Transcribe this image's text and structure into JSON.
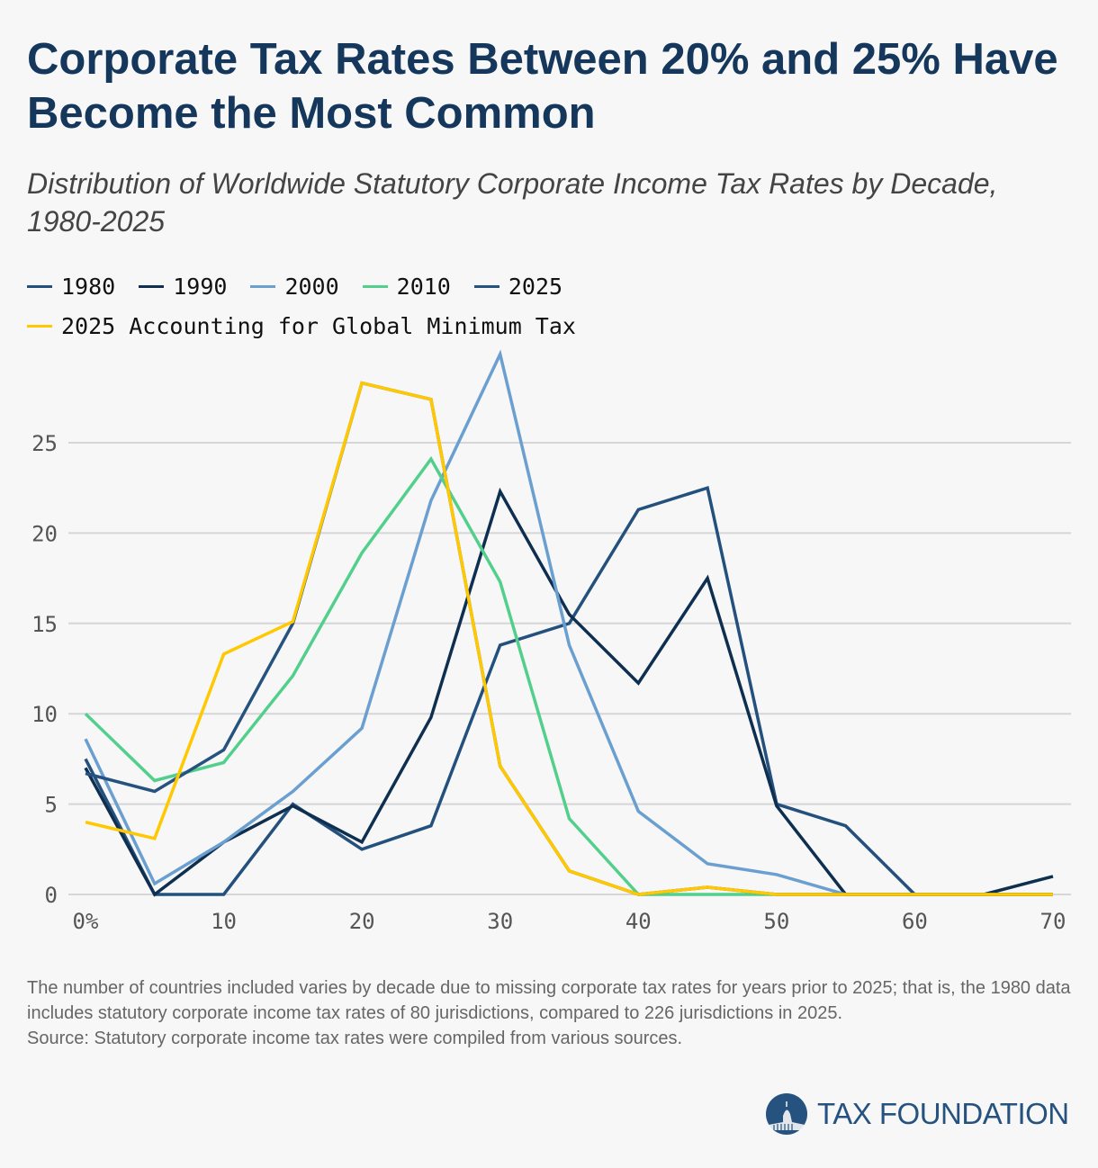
{
  "title": "Corporate Tax Rates Between 20% and 25% Have Become the Most Common",
  "subtitle": "Distribution of Worldwide Statutory Corporate Income Tax Rates by Decade, 1980-2025",
  "notes": {
    "line1": "The number of countries included varies by decade due to missing corporate tax rates for years prior to 2025; that is, the 1980 data includes statutory corporate income tax rates of 80 jurisdictions, compared to 226 jurisdictions in 2025.",
    "source": "Source: Statutory corporate income tax rates were compiled from various sources."
  },
  "logo": {
    "text": "TAX FOUNDATION",
    "color": "#25527f"
  },
  "chart_data": {
    "type": "line",
    "x": [
      0,
      5,
      10,
      15,
      20,
      25,
      30,
      35,
      40,
      45,
      50,
      55,
      60,
      65,
      70
    ],
    "x_tick_values": [
      0,
      10,
      20,
      30,
      40,
      50,
      60,
      70
    ],
    "x_tick_labels": [
      "0%",
      "10",
      "20",
      "30",
      "40",
      "50",
      "60",
      "70"
    ],
    "y_tick_values": [
      0,
      5,
      10,
      15,
      20,
      25
    ],
    "y_tick_labels": [
      "0",
      "5",
      "10",
      "15",
      "20",
      "25"
    ],
    "xlim": [
      0,
      70
    ],
    "ylim": [
      0,
      30
    ],
    "grid": "horizontal",
    "legend_position": "top-left",
    "series": [
      {
        "name": "1980",
        "color": "#24507d",
        "values": [
          7.5,
          0,
          0,
          5,
          2.5,
          3.8,
          13.8,
          15,
          21.3,
          22.5,
          5,
          3.8,
          0,
          0,
          0
        ]
      },
      {
        "name": "1990",
        "color": "#0f2f50",
        "values": [
          7,
          0,
          2.9,
          4.9,
          2.9,
          9.8,
          22.3,
          15.5,
          11.7,
          17.5,
          4.9,
          0,
          0,
          0,
          1
        ]
      },
      {
        "name": "2000",
        "color": "#6a9fd0",
        "values": [
          8.6,
          0.6,
          2.9,
          5.7,
          9.2,
          21.8,
          29.9,
          13.8,
          4.6,
          1.7,
          1.1,
          0,
          0,
          0,
          0
        ]
      },
      {
        "name": "2010",
        "color": "#52d08b",
        "values": [
          10,
          6.3,
          7.3,
          12.1,
          18.9,
          24.1,
          17.3,
          4.2,
          0,
          0,
          0,
          0,
          0,
          0,
          0
        ]
      },
      {
        "name": "2025",
        "color": "#25527f",
        "values": [
          6.7,
          5.7,
          8,
          15,
          28.3,
          27.4,
          7.1,
          1.3,
          0,
          0.4,
          0,
          0,
          0,
          0,
          0
        ]
      },
      {
        "name": "2025 Accounting for Global Minimum Tax",
        "color": "#ffc800",
        "values": [
          4,
          3.1,
          13.3,
          15.1,
          28.3,
          27.4,
          7.1,
          1.3,
          0,
          0.4,
          0,
          0,
          0,
          0,
          0
        ]
      }
    ]
  }
}
